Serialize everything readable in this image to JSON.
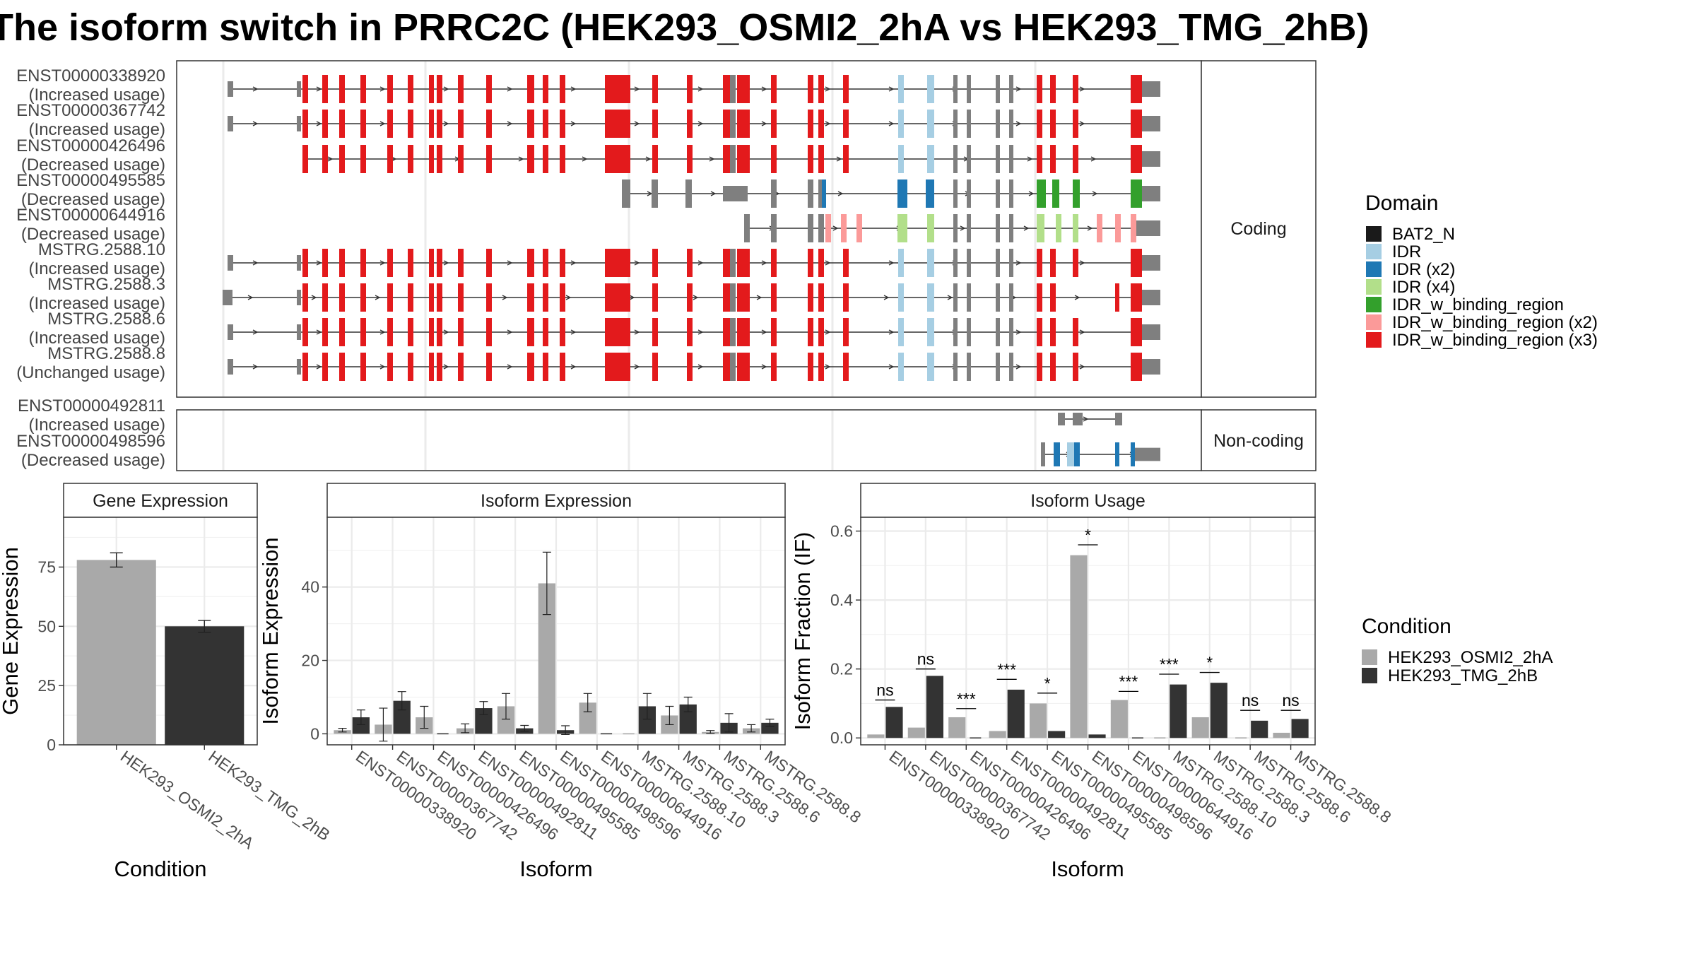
{
  "title": "The isoform switch in PRRC2C (HEK293_OSMI2_2hA vs HEK293_TMG_2hB)",
  "structure": {
    "coding_label": "Coding",
    "noncoding_label": "Non-coding",
    "coding": [
      {
        "id": "ENST00000338920",
        "usage": "(Increased usage)",
        "exons": "full",
        "left": "utr2"
      },
      {
        "id": "ENST00000367742",
        "usage": "(Increased usage)",
        "exons": "full",
        "left": "utr2"
      },
      {
        "id": "ENST00000426496",
        "usage": "(Decreased usage)",
        "exons": "full",
        "left": "none"
      },
      {
        "id": "ENST00000495585",
        "usage": "(Decreased usage)",
        "exons": "tail2",
        "left": "none"
      },
      {
        "id": "ENST00000644916",
        "usage": "(Decreased usage)",
        "exons": "tail4",
        "left": "none"
      },
      {
        "id": "MSTRG.2588.10",
        "usage": "(Increased usage)",
        "exons": "full",
        "left": "utr2"
      },
      {
        "id": "MSTRG.2588.3",
        "usage": "(Increased usage)",
        "exons": "full_var",
        "left": "utr2w"
      },
      {
        "id": "MSTRG.2588.6",
        "usage": "(Increased usage)",
        "exons": "full",
        "left": "utr2"
      },
      {
        "id": "MSTRG.2588.8",
        "usage": "(Unchanged usage)",
        "exons": "full",
        "left": "utr2"
      }
    ],
    "noncoding": [
      {
        "id": "ENST00000492811",
        "usage": "(Increased usage)"
      },
      {
        "id": "ENST00000498596",
        "usage": "(Decreased usage)"
      }
    ]
  },
  "domain_legend": {
    "title": "Domain",
    "items": [
      {
        "name": "BAT2_N",
        "color": "#1a1a1a"
      },
      {
        "name": "IDR",
        "color": "#a6cee3"
      },
      {
        "name": "IDR (x2)",
        "color": "#1f78b4"
      },
      {
        "name": "IDR (x4)",
        "color": "#b2df8a"
      },
      {
        "name": "IDR_w_binding_region",
        "color": "#33a02c"
      },
      {
        "name": "IDR_w_binding_region (x2)",
        "color": "#fb9a99"
      },
      {
        "name": "IDR_w_binding_region (x3)",
        "color": "#e31a1c"
      }
    ]
  },
  "condition_legend": {
    "title": "Condition",
    "items": [
      {
        "name": "HEK293_OSMI2_2hA",
        "color": "#a9a9a9"
      },
      {
        "name": "HEK293_TMG_2hB",
        "color": "#333333"
      }
    ]
  },
  "chart_data": [
    {
      "type": "bar",
      "title": "Gene Expression",
      "xlabel": "Condition",
      "ylabel": "Gene Expression",
      "categories": [
        "HEK293_OSMI2_2hA",
        "HEK293_TMG_2hB"
      ],
      "values": [
        78,
        50
      ],
      "errors": [
        3,
        2.5
      ],
      "colors": [
        "#a9a9a9",
        "#333333"
      ],
      "ylim": [
        0,
        96
      ],
      "yticks": [
        0,
        25,
        50,
        75
      ]
    },
    {
      "type": "bar",
      "title": "Isoform Expression",
      "xlabel": "Isoform",
      "ylabel": "Isoform Expression",
      "categories": [
        "ENST00000338920",
        "ENST00000367742",
        "ENST00000426496",
        "ENST00000492811",
        "ENST00000495585",
        "ENST00000498596",
        "ENST00000644916",
        "MSTRG.2588.10",
        "MSTRG.2588.3",
        "MSTRG.2588.6",
        "MSTRG.2588.8"
      ],
      "series": [
        {
          "name": "HEK293_OSMI2_2hA",
          "values": [
            1,
            2.5,
            4.5,
            1.5,
            7.5,
            41,
            8.5,
            0,
            5,
            0.5,
            1.5
          ],
          "errors": [
            0.5,
            4.5,
            3,
            1.2,
            3.5,
            8.5,
            2.5,
            0,
            2.5,
            0.4,
            1
          ]
        },
        {
          "name": "HEK293_TMG_2hB",
          "values": [
            4.5,
            9,
            0,
            7,
            1.5,
            1,
            0,
            7.5,
            8,
            3,
            3
          ],
          "errors": [
            2,
            2.5,
            0,
            1.8,
            0.8,
            1.2,
            0,
            3.5,
            2,
            2.5,
            1
          ]
        }
      ],
      "ylim": [
        -3,
        59
      ],
      "yticks": [
        0,
        20,
        40
      ]
    },
    {
      "type": "bar",
      "title": "Isoform Usage",
      "xlabel": "Isoform",
      "ylabel": "Isoform Fraction (IF)",
      "categories": [
        "ENST00000338920",
        "ENST00000367742",
        "ENST00000426496",
        "ENST00000492811",
        "ENST00000495585",
        "ENST00000498596",
        "ENST00000644916",
        "MSTRG.2588.10",
        "MSTRG.2588.3",
        "MSTRG.2588.6",
        "MSTRG.2588.8"
      ],
      "series": [
        {
          "name": "HEK293_OSMI2_2hA",
          "values": [
            0.01,
            0.03,
            0.06,
            0.02,
            0.1,
            0.53,
            0.11,
            0,
            0.06,
            0,
            0.015
          ]
        },
        {
          "name": "HEK293_TMG_2hB",
          "values": [
            0.09,
            0.18,
            0,
            0.14,
            0.02,
            0.01,
            0,
            0.155,
            0.16,
            0.05,
            0.055
          ]
        }
      ],
      "significance": [
        "ns",
        "ns",
        "***",
        "***",
        "*",
        "*",
        "***",
        "***",
        "*",
        "ns",
        "ns"
      ],
      "sig_line": [
        0.11,
        0.2,
        0.085,
        0.17,
        0.13,
        0.56,
        0.135,
        0.185,
        0.19,
        0.08,
        0.08
      ],
      "ylim": [
        -0.02,
        0.64
      ],
      "yticks": [
        0.0,
        0.2,
        0.4,
        0.6
      ],
      "ytick_labels": [
        "0.0",
        "0.2",
        "0.4",
        "0.6"
      ]
    }
  ]
}
